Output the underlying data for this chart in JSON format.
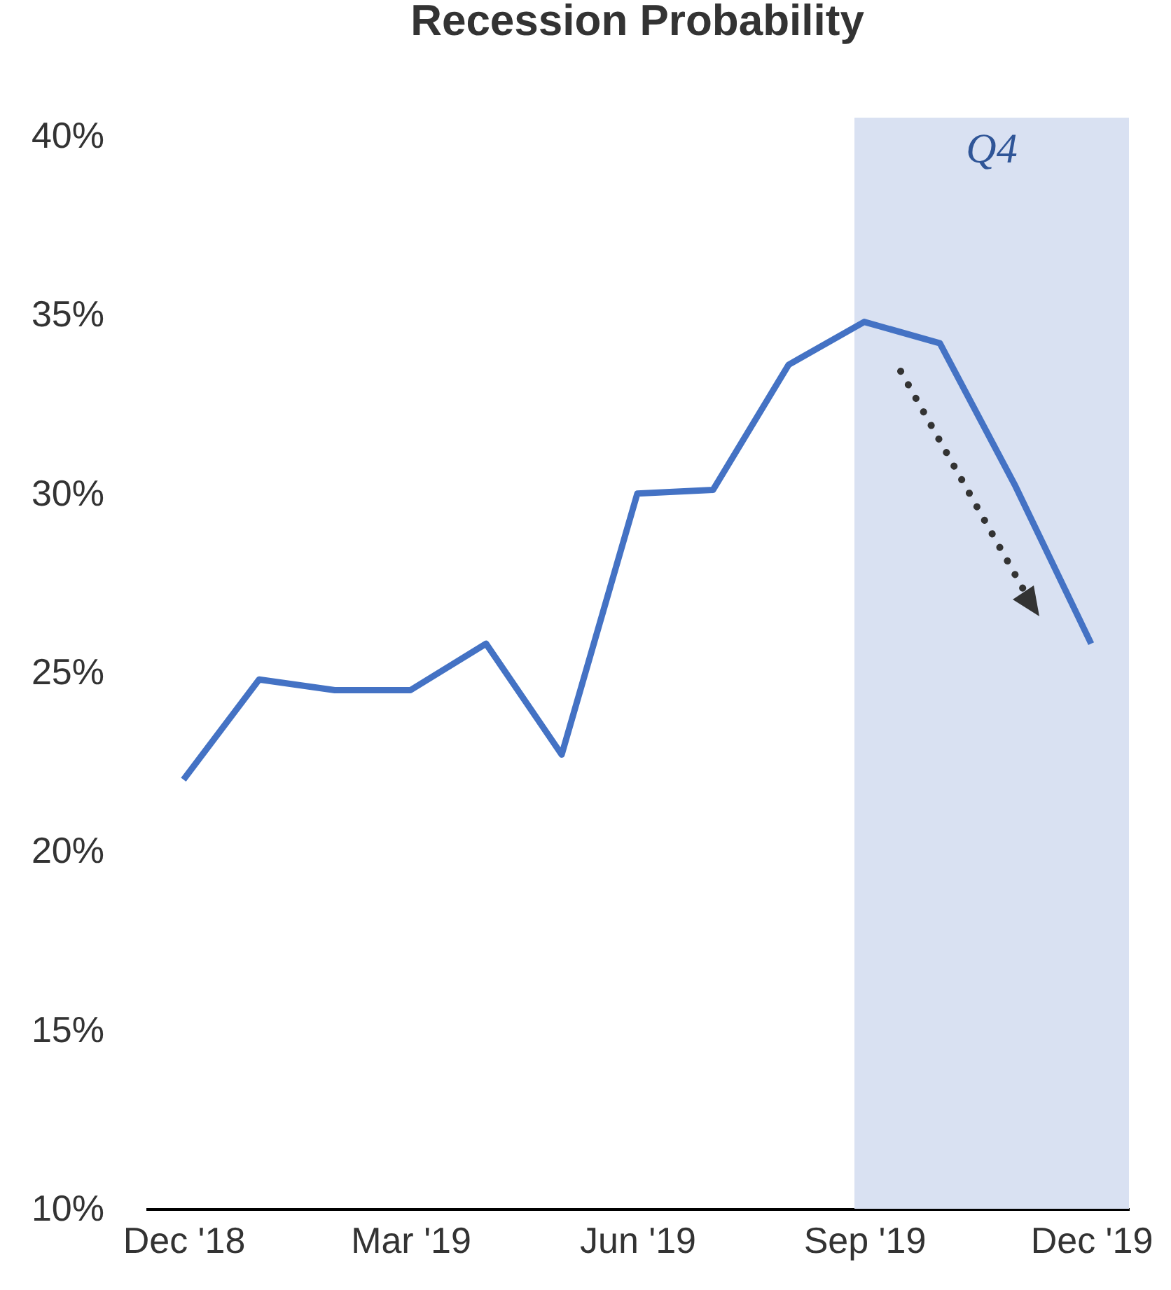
{
  "chart_data": {
    "type": "line",
    "title": "Recession Probability",
    "categories": [
      "Dec '18",
      null,
      null,
      "Mar '19",
      null,
      null,
      "Jun '19",
      null,
      null,
      "Sep '19",
      null,
      null,
      "Dec '19"
    ],
    "series": [
      {
        "color": "#4472c4",
        "values": [
          22.0,
          24.8,
          24.5,
          24.5,
          25.8,
          22.7,
          30.0,
          30.1,
          33.6,
          34.8,
          34.2,
          30.2,
          25.8
        ]
      }
    ],
    "ylim": [
      10,
      40
    ],
    "yticks": [
      {
        "value": 10,
        "label": "10%"
      },
      {
        "value": 15,
        "label": "15%"
      },
      {
        "value": 20,
        "label": "20%"
      },
      {
        "value": 25,
        "label": "25%"
      },
      {
        "value": 30,
        "label": "30%"
      },
      {
        "value": 35,
        "label": "35%"
      },
      {
        "value": 40,
        "label": "40%"
      }
    ],
    "bands": [
      {
        "axis": "x",
        "from": "Sep '19",
        "to": "Dec '19",
        "label": "Q4",
        "color": "#d9e1f2"
      }
    ],
    "grid": false,
    "marker": "none",
    "line_style": "solid"
  }
}
